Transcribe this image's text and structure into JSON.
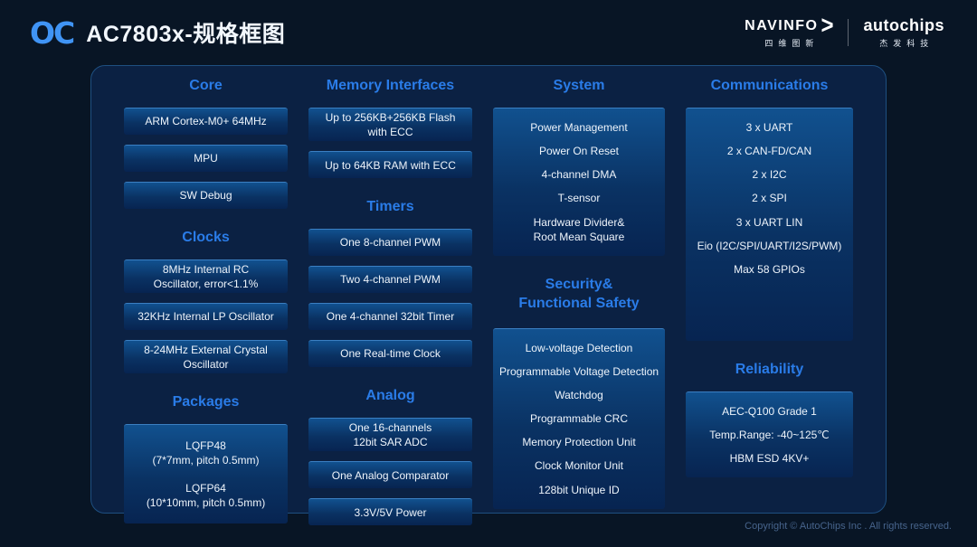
{
  "header": {
    "logo_text": "OC",
    "title": "AC7803x-规格框图",
    "brand_left": {
      "name": "NAVINFO",
      "arrow": "&gt;",
      "subtitle": "四维图新"
    },
    "brand_right": {
      "name": "autochips",
      "subtitle": "杰发科技"
    }
  },
  "colors": {
    "page_bg": "#081525",
    "panel_bg": "#0b2143",
    "panel_border": "#1e4f80",
    "section_header_blue": "#2a7ce8",
    "box_gradient_top": "#11518f",
    "box_gradient_bottom": "#072451",
    "logo_blue": "#4094f5"
  },
  "columns": [
    {
      "sections": [
        {
          "title": [
            "Core"
          ],
          "boxes": [
            [
              [
                "ARM Cortex-M0+ 64MHz"
              ]
            ],
            [
              [
                "MPU"
              ]
            ],
            [
              [
                "SW Debug"
              ]
            ]
          ]
        },
        {
          "title": [
            "Clocks"
          ],
          "boxes": [
            [
              [
                "8MHz Internal RC",
                "Oscillator, error<1.1%"
              ]
            ],
            [
              [
                "32KHz Internal LP Oscillator"
              ]
            ],
            [
              [
                "8-24MHz External Crystal",
                "Oscillator"
              ]
            ]
          ]
        },
        {
          "title": [
            "Packages"
          ],
          "boxes": [
            [
              [
                "LQFP48",
                "(7*7mm, pitch 0.5mm)"
              ],
              [
                "LQFP64",
                "(10*10mm, pitch 0.5mm)"
              ]
            ]
          ]
        }
      ]
    },
    {
      "sections": [
        {
          "title": [
            "Memory Interfaces"
          ],
          "boxes": [
            [
              [
                "Up to 256KB+256KB Flash",
                "with ECC"
              ]
            ],
            [
              [
                "Up to 64KB RAM with ECC"
              ]
            ]
          ]
        },
        {
          "title": [
            "Timers"
          ],
          "boxes": [
            [
              [
                "One 8-channel PWM"
              ]
            ],
            [
              [
                "Two 4-channel PWM"
              ]
            ],
            [
              [
                "One 4-channel 32bit Timer"
              ]
            ],
            [
              [
                "One Real-time Clock"
              ]
            ]
          ]
        },
        {
          "title": [
            "Analog"
          ],
          "boxes": [
            [
              [
                "One 16-channels",
                "12bit SAR ADC"
              ]
            ],
            [
              [
                "One Analog Comparator"
              ]
            ],
            [
              [
                "3.3V/5V Power"
              ]
            ]
          ]
        }
      ]
    },
    {
      "sections": [
        {
          "title": [
            "System"
          ],
          "boxes": [
            [
              [
                "Power Management"
              ],
              [
                "Power On Reset"
              ],
              [
                "4-channel DMA"
              ],
              [
                "T-sensor"
              ],
              [
                "Hardware Divider&",
                "Root Mean Square"
              ]
            ]
          ]
        },
        {
          "title": [
            "Security&",
            "Functional Safety"
          ],
          "boxes": [
            [
              [
                "Low-voltage Detection"
              ],
              [
                "Programmable Voltage Detection"
              ],
              [
                "Watchdog"
              ],
              [
                "Programmable CRC"
              ],
              [
                "Memory Protection Unit"
              ],
              [
                "Clock Monitor Unit"
              ],
              [
                "128bit Unique ID"
              ]
            ]
          ]
        }
      ]
    },
    {
      "sections": [
        {
          "title": [
            "Communications"
          ],
          "boxes": [
            [
              [
                "3 x UART"
              ],
              [
                "2 x CAN-FD/CAN"
              ],
              [
                "2 x I2C"
              ],
              [
                "2 x SPI"
              ],
              [
                "3 x UART LIN"
              ],
              [
                "Eio (I2C/SPI/UART/I2S/PWM)"
              ],
              [
                "Max 58 GPIOs"
              ]
            ]
          ]
        },
        {
          "title": [
            "Reliability"
          ],
          "boxes": [
            [
              [
                "AEC-Q100 Grade 1"
              ],
              [
                "Temp.Range: -40~125℃"
              ],
              [
                "HBM ESD 4KV+"
              ]
            ]
          ]
        }
      ]
    }
  ],
  "footer": {
    "copyright": "Copyright © AutoChips Inc . All rights reserved."
  }
}
